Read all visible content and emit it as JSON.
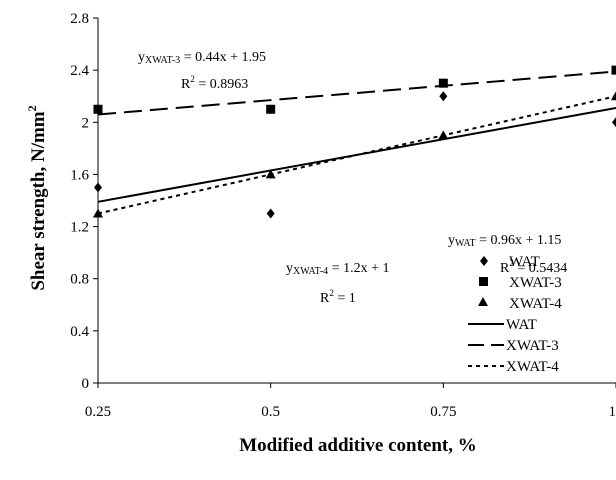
{
  "chart_data": {
    "type": "scatter",
    "xlabel": "Modified additive content, %",
    "ylabel": "Shear strength, N/mm",
    "ylabel_sup": "2",
    "xlim": [
      0.25,
      1
    ],
    "ylim": [
      0,
      2.8
    ],
    "x_ticks": [
      0.25,
      0.5,
      0.75,
      1
    ],
    "x_tick_labels": [
      "0.25",
      "0.5",
      "0.75",
      "1"
    ],
    "y_ticks": [
      0,
      0.4,
      0.8,
      1.2,
      1.6,
      2,
      2.4,
      2.8
    ],
    "y_tick_labels": [
      "0",
      "0.4",
      "0.8",
      "1.2",
      "1.6",
      "2",
      "2.4",
      "2.8"
    ],
    "grid": false,
    "legend_position": "bottom-right",
    "series": [
      {
        "name": "WAT",
        "marker": "diamond",
        "x": [
          0.25,
          0.5,
          0.75,
          1
        ],
        "y": [
          1.5,
          1.3,
          2.2,
          2.0
        ]
      },
      {
        "name": "XWAT-3",
        "marker": "square",
        "x": [
          0.25,
          0.5,
          0.75,
          1
        ],
        "y": [
          2.1,
          2.1,
          2.3,
          2.4
        ]
      },
      {
        "name": "XWAT-4",
        "marker": "triangle",
        "x": [
          0.25,
          0.5,
          0.75,
          1
        ],
        "y": [
          1.3,
          1.6,
          1.9,
          2.2
        ]
      }
    ],
    "trendlines": [
      {
        "name": "WAT",
        "style": "solid",
        "slope": 0.96,
        "intercept": 1.15
      },
      {
        "name": "XWAT-3",
        "style": "long-dash",
        "slope": 0.44,
        "intercept": 1.95
      },
      {
        "name": "XWAT-4",
        "style": "short-dash",
        "slope": 1.2,
        "intercept": 1
      }
    ],
    "annotations": [
      {
        "y_label": "y",
        "sub": "XWAT-3",
        "eq": " = 0.44x + 1.95",
        "r2_label": "R",
        "r2_sup": "2",
        "r2_value": " = 0.8963"
      },
      {
        "y_label": "y",
        "sub": "WAT",
        "eq": " = 0.96x + 1.15",
        "r2_label": "R",
        "r2_sup": "2",
        "r2_value": " = 0.5434"
      },
      {
        "y_label": "y",
        "sub": "XWAT-4",
        "eq": " = 1.2x + 1",
        "r2_label": "R",
        "r2_sup": "2",
        "r2_value": " = 1"
      }
    ],
    "legend": {
      "markers": [
        "WAT",
        "XWAT-3",
        "XWAT-4"
      ],
      "lines": [
        "WAT",
        "XWAT-3",
        "XWAT-4"
      ]
    }
  }
}
